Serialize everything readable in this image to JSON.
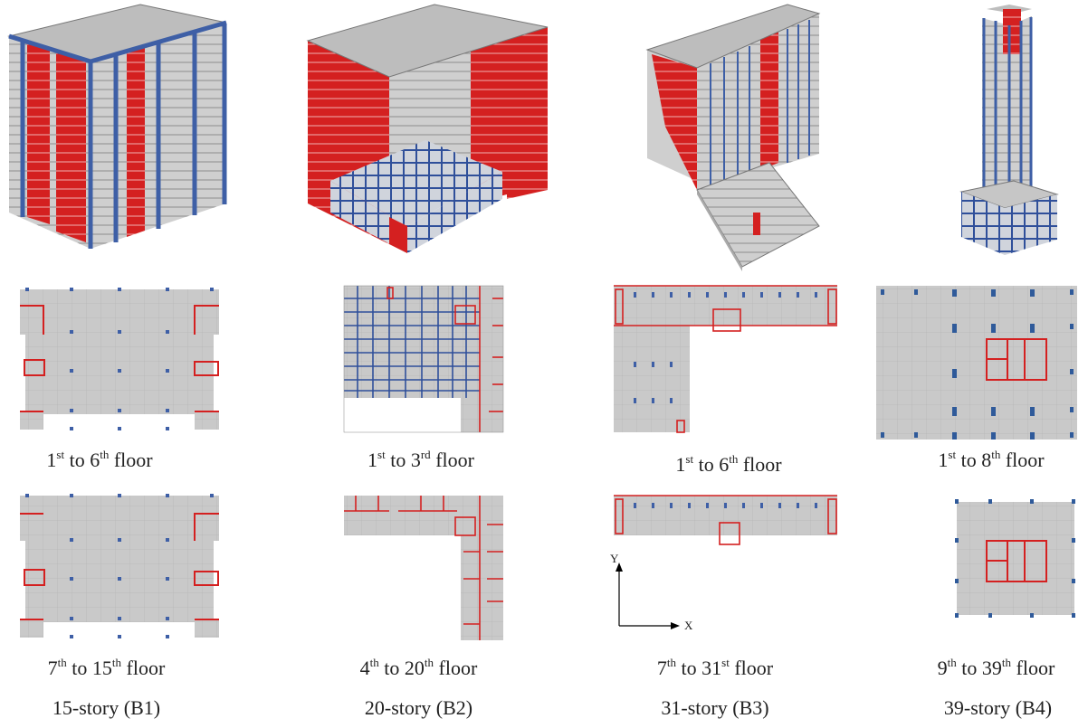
{
  "buildings": [
    {
      "id": "B1",
      "story_caption": "15-story (B1)",
      "lower_plan": {
        "from": "1",
        "from_suffix": "st",
        "to": "6",
        "to_suffix": "th",
        "word": "floor"
      },
      "upper_plan": {
        "from": "7",
        "from_suffix": "th",
        "to": "15",
        "to_suffix": "th",
        "word": "floor"
      }
    },
    {
      "id": "B2",
      "story_caption": "20-story (B2)",
      "lower_plan": {
        "from": "1",
        "from_suffix": "st",
        "to": "3",
        "to_suffix": "rd",
        "word": "floor"
      },
      "upper_plan": {
        "from": "4",
        "from_suffix": "th",
        "to": "20",
        "to_suffix": "th",
        "word": "floor"
      }
    },
    {
      "id": "B3",
      "story_caption": "31-story (B3)",
      "lower_plan": {
        "from": "1",
        "from_suffix": "st",
        "to": "6",
        "to_suffix": "th",
        "word": "floor"
      },
      "upper_plan": {
        "from": "7",
        "from_suffix": "th",
        "to": "31",
        "to_suffix": "st",
        "word": "floor"
      }
    },
    {
      "id": "B4",
      "story_caption": "39-story (B4)",
      "lower_plan": {
        "from": "1",
        "from_suffix": "st",
        "to": "8",
        "to_suffix": "th",
        "word": "floor"
      },
      "upper_plan": {
        "from": "9",
        "from_suffix": "th",
        "to": "39",
        "to_suffix": "th",
        "word": "floor"
      }
    }
  ],
  "axes": {
    "y_label": "Y",
    "x_label": "X"
  },
  "colors": {
    "slab": "#c9c9c9",
    "wall": "#d42020",
    "beam": "#2f4f9a",
    "grid": "#b8b8b8",
    "column": "#3e5fa6"
  }
}
